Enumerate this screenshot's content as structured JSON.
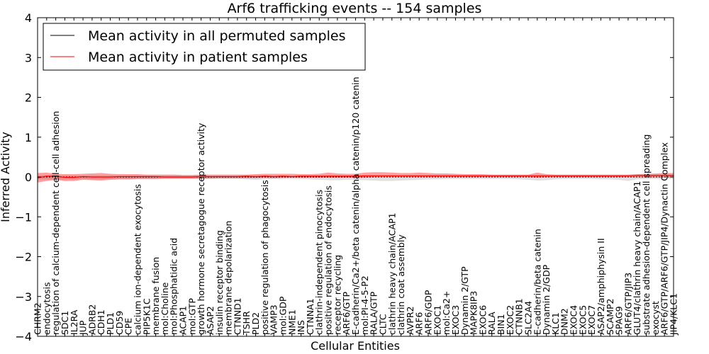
{
  "chart_data": {
    "type": "line",
    "title": "Arf6 trafficking events -- 154 samples",
    "xlabel": "Cellular Entities",
    "ylabel": "Inferred Activity",
    "ylim": [
      -4,
      4
    ],
    "yticks": [
      -4,
      -3,
      -2,
      -1,
      0,
      1,
      2,
      3,
      4
    ],
    "legend_position": "top-left",
    "categories": [
      "CHRM2",
      "endocytosis",
      "regulation of calcium-dependent cell-cell adhesion",
      "SDC1",
      "IL2RA",
      "JUP",
      "ADRB2",
      "CDH1",
      "PLD1",
      "CD59",
      "CPE",
      "calcium ion-dependent exocytosis",
      "PIP5K1C",
      "membrane fusion",
      "mol:Choline",
      "mol:Phosphatidic acid",
      "ACAP1",
      "mol:GTP",
      "growth hormone secretagogue receptor activity",
      "ASAP2",
      "insulin receptor binding",
      "membrane depolarization",
      "CTNND1",
      "TSHR",
      "PLD2",
      "positive regulation of phagocytosis",
      "VAMP3",
      "mol:GDP",
      "NME1",
      "INS",
      "CTNNA1",
      "clathrin-independent pinocytosis",
      "positive regulation of endocytosis",
      "receptor recycling",
      "ARF6/GTP",
      "E-cadherin/Ca2+/beta catenin/alpha catenin/p120 catenin",
      "mol:PI-4-5-P2",
      "RALA/GTP",
      "CLTC",
      "clathrin heavy chain/ACAP1",
      "clathrin coat assembly",
      "AVPR2",
      "ARF6",
      "ARF6/GDP",
      "EXOC1",
      "mol:Ca2+",
      "EXOC3",
      "Dynamin 2/GTP",
      "MAPK8IP3",
      "EXOC6",
      "RALA",
      "BIN1",
      "EXOC2",
      "CTNNB1",
      "SLC2A4",
      "E-cadherin/beta catenin",
      "Dynamin 2/GDP",
      "KLC1",
      "DNM2",
      "EXOC4",
      "EXOC5",
      "EXOC7",
      "ASAP2/amphiphysin II",
      "SCAMP2",
      "SPAG9",
      "ARF6/GTP/JIP3",
      "GLUT4/clathrin heavy chain/ACAP1",
      "substrate adhesion-dependent cell spreading",
      "exocyst",
      "ARF6/GTP/ARF6/GTP/JIP4/Dynactin Complex",
      "JIP4/KLC1"
    ],
    "series": [
      {
        "name": "Mean activity in all permuted samples",
        "color": "#000000",
        "values": [
          0,
          0,
          0,
          0,
          0,
          0,
          0,
          0,
          0,
          0,
          0,
          0,
          0,
          0,
          0,
          0,
          0,
          0,
          0,
          0,
          0,
          0,
          0,
          0,
          0,
          0,
          0,
          0,
          0,
          0,
          0,
          0,
          0,
          0,
          0,
          0,
          0,
          0,
          0,
          0,
          0,
          0,
          0,
          0,
          0,
          0,
          0,
          0,
          0,
          0,
          0,
          0,
          0,
          0,
          0,
          0,
          0,
          0,
          0,
          0,
          0,
          0,
          0,
          0,
          0,
          0,
          0,
          0,
          0,
          0,
          0
        ],
        "band_upper": [
          0.04,
          0.05,
          0.04,
          0.04,
          0.04,
          0.04,
          0.04,
          0.04,
          0.04,
          0.04,
          0.04,
          0.04,
          0.04,
          0.04,
          0.04,
          0.04,
          0.04,
          0.04,
          0.04,
          0.04,
          0.04,
          0.04,
          0.04,
          0.04,
          0.04,
          0.04,
          0.04,
          0.04,
          0.04,
          0.04,
          0.04,
          0.04,
          0.04,
          0.04,
          0.04,
          0.04,
          0.04,
          0.04,
          0.04,
          0.04,
          0.04,
          0.04,
          0.04,
          0.04,
          0.04,
          0.04,
          0.04,
          0.04,
          0.04,
          0.04,
          0.04,
          0.04,
          0.04,
          0.04,
          0.04,
          0.04,
          0.04,
          0.04,
          0.04,
          0.04,
          0.04,
          0.04,
          0.04,
          0.04,
          0.04,
          0.04,
          0.04,
          0.04,
          0.04,
          0.04,
          0.04
        ],
        "band_lower": [
          -0.06,
          -0.06,
          -0.07,
          -0.06,
          -0.06,
          -0.05,
          -0.06,
          -0.06,
          -0.05,
          -0.05,
          -0.05,
          -0.05,
          -0.05,
          -0.05,
          -0.05,
          -0.05,
          -0.05,
          -0.05,
          -0.05,
          -0.05,
          -0.05,
          -0.05,
          -0.05,
          -0.06,
          -0.07,
          -0.06,
          -0.05,
          -0.05,
          -0.05,
          -0.05,
          -0.06,
          -0.07,
          -0.08,
          -0.08,
          -0.07,
          -0.07,
          -0.08,
          -0.09,
          -0.1,
          -0.1,
          -0.09,
          -0.08,
          -0.07,
          -0.06,
          -0.06,
          -0.05,
          -0.05,
          -0.05,
          -0.05,
          -0.05,
          -0.05,
          -0.05,
          -0.05,
          -0.06,
          -0.07,
          -0.09,
          -0.08,
          -0.06,
          -0.05,
          -0.05,
          -0.05,
          -0.05,
          -0.06,
          -0.06,
          -0.07,
          -0.1,
          -0.06,
          -0.05,
          -0.05,
          -0.05,
          -0.05
        ]
      },
      {
        "name": "Mean activity in patient samples",
        "color": "#ff0000",
        "values": [
          -0.02,
          0.02,
          0.02,
          -0.01,
          -0.01,
          0.01,
          0.0,
          0.0,
          0.0,
          0.01,
          0.01,
          0.01,
          0.01,
          0.01,
          0.0,
          0.0,
          0.0,
          0.0,
          0.01,
          0.01,
          0.01,
          0.01,
          0.01,
          0.02,
          0.01,
          0.02,
          0.01,
          0.02,
          0.01,
          0.02,
          0.02,
          0.02,
          0.02,
          0.02,
          0.02,
          0.02,
          0.03,
          0.03,
          0.03,
          0.03,
          0.03,
          0.03,
          0.03,
          0.03,
          0.03,
          0.03,
          0.03,
          0.03,
          0.03,
          0.03,
          0.03,
          0.03,
          0.03,
          0.03,
          0.03,
          0.03,
          0.03,
          0.03,
          0.03,
          0.03,
          0.03,
          0.03,
          0.03,
          0.03,
          0.03,
          0.03,
          0.04,
          0.04,
          0.04,
          0.04,
          0.04
        ],
        "band_upper": [
          0.1,
          0.11,
          0.08,
          0.07,
          0.07,
          0.08,
          0.09,
          0.1,
          0.08,
          0.07,
          0.07,
          0.07,
          0.06,
          0.06,
          0.06,
          0.06,
          0.05,
          0.05,
          0.06,
          0.06,
          0.06,
          0.06,
          0.06,
          0.06,
          0.07,
          0.08,
          0.08,
          0.08,
          0.08,
          0.07,
          0.07,
          0.08,
          0.11,
          0.09,
          0.08,
          0.08,
          0.11,
          0.12,
          0.12,
          0.11,
          0.1,
          0.1,
          0.11,
          0.1,
          0.09,
          0.09,
          0.08,
          0.07,
          0.07,
          0.07,
          0.06,
          0.06,
          0.06,
          0.06,
          0.06,
          0.11,
          0.07,
          0.06,
          0.06,
          0.06,
          0.06,
          0.06,
          0.06,
          0.06,
          0.06,
          0.06,
          0.07,
          0.08,
          0.09,
          0.1,
          0.1
        ],
        "band_lower": [
          -0.14,
          -0.1,
          -0.07,
          -0.1,
          -0.1,
          -0.07,
          -0.08,
          -0.09,
          -0.07,
          -0.06,
          -0.06,
          -0.05,
          -0.05,
          -0.05,
          -0.04,
          -0.04,
          -0.04,
          -0.04,
          -0.04,
          -0.04,
          -0.03,
          -0.03,
          -0.03,
          -0.03,
          -0.03,
          -0.02,
          -0.03,
          -0.02,
          -0.02,
          -0.02,
          -0.02,
          -0.02,
          -0.02,
          -0.02,
          -0.02,
          -0.02,
          -0.02,
          -0.01,
          -0.01,
          -0.01,
          -0.01,
          -0.01,
          -0.01,
          -0.01,
          -0.01,
          -0.01,
          -0.01,
          -0.01,
          -0.01,
          -0.01,
          -0.01,
          -0.01,
          -0.01,
          -0.01,
          -0.01,
          -0.02,
          -0.01,
          -0.01,
          -0.01,
          -0.01,
          -0.01,
          -0.01,
          -0.01,
          -0.01,
          -0.01,
          -0.01,
          -0.01,
          -0.01,
          -0.01,
          -0.01,
          -0.01
        ]
      }
    ]
  }
}
